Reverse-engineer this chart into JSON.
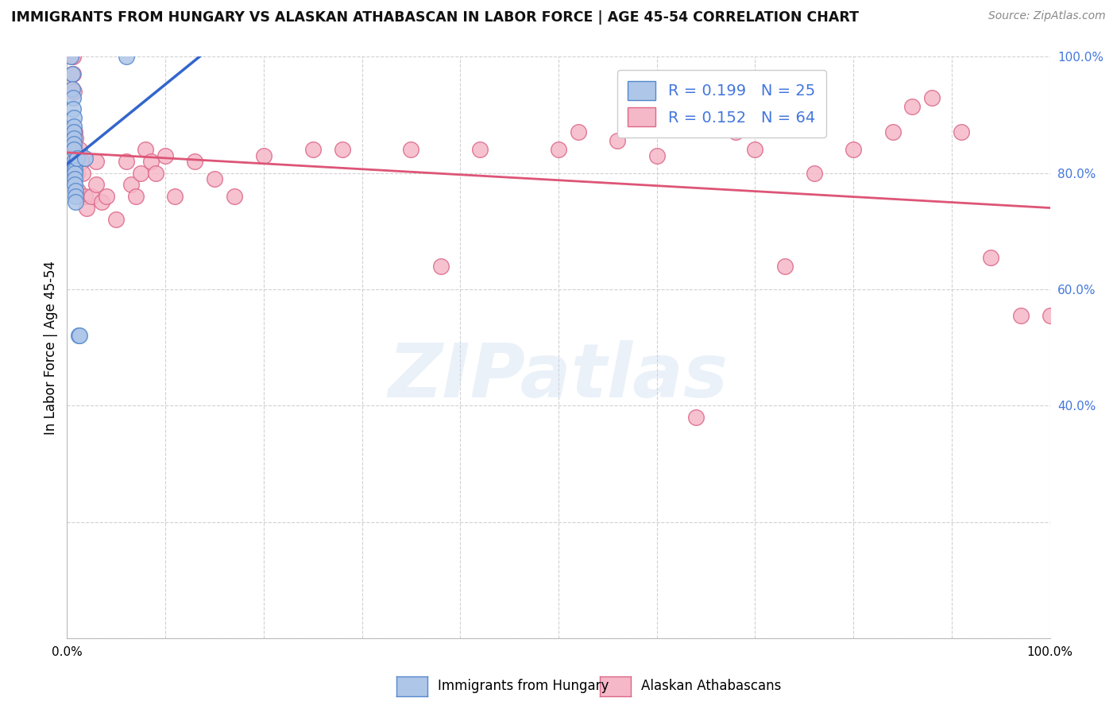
{
  "title": "IMMIGRANTS FROM HUNGARY VS ALASKAN ATHABASCAN IN LABOR FORCE | AGE 45-54 CORRELATION CHART",
  "source": "Source: ZipAtlas.com",
  "ylabel": "In Labor Force | Age 45-54",
  "blue_R": 0.199,
  "blue_N": 25,
  "pink_R": 0.152,
  "pink_N": 64,
  "blue_color": "#aec6e8",
  "pink_color": "#f5b8c8",
  "blue_edge_color": "#5588cc",
  "pink_edge_color": "#dd6688",
  "blue_line_color": "#3366cc",
  "pink_line_color": "#dd5577",
  "right_tick_color": "#4477dd",
  "grid_color": "#cccccc",
  "background_color": "#ffffff",
  "blue_x": [
    0.004,
    0.005,
    0.005,
    0.006,
    0.006,
    0.007,
    0.007,
    0.007,
    0.007,
    0.007,
    0.007,
    0.007,
    0.008,
    0.008,
    0.008,
    0.008,
    0.008,
    0.009,
    0.009,
    0.009,
    0.01,
    0.012,
    0.013,
    0.018,
    0.06
  ],
  "blue_y": [
    1.0,
    0.97,
    0.945,
    0.93,
    0.91,
    0.895,
    0.88,
    0.87,
    0.86,
    0.85,
    0.84,
    0.82,
    0.815,
    0.805,
    0.8,
    0.79,
    0.78,
    0.77,
    0.76,
    0.75,
    0.825,
    0.52,
    0.52,
    0.825,
    1.0
  ],
  "pink_x": [
    0.004,
    0.005,
    0.005,
    0.005,
    0.006,
    0.006,
    0.007,
    0.007,
    0.007,
    0.008,
    0.008,
    0.008,
    0.009,
    0.009,
    0.01,
    0.01,
    0.011,
    0.012,
    0.013,
    0.015,
    0.016,
    0.018,
    0.02,
    0.025,
    0.03,
    0.03,
    0.035,
    0.04,
    0.05,
    0.06,
    0.065,
    0.07,
    0.075,
    0.08,
    0.085,
    0.09,
    0.1,
    0.11,
    0.13,
    0.15,
    0.17,
    0.2,
    0.25,
    0.28,
    0.35,
    0.38,
    0.42,
    0.5,
    0.52,
    0.56,
    0.6,
    0.64,
    0.68,
    0.7,
    0.73,
    0.76,
    0.8,
    0.84,
    0.86,
    0.88,
    0.91,
    0.94,
    0.97,
    1.0
  ],
  "pink_y": [
    0.87,
    1.0,
    0.97,
    0.945,
    1.0,
    0.97,
    0.94,
    0.87,
    0.84,
    0.87,
    0.845,
    0.82,
    0.8,
    0.86,
    0.83,
    0.8,
    0.77,
    0.82,
    0.84,
    0.82,
    0.8,
    0.76,
    0.74,
    0.76,
    0.82,
    0.78,
    0.75,
    0.76,
    0.72,
    0.82,
    0.78,
    0.76,
    0.8,
    0.84,
    0.82,
    0.8,
    0.83,
    0.76,
    0.82,
    0.79,
    0.76,
    0.83,
    0.84,
    0.84,
    0.84,
    0.64,
    0.84,
    0.84,
    0.87,
    0.855,
    0.83,
    0.38,
    0.87,
    0.84,
    0.64,
    0.8,
    0.84,
    0.87,
    0.915,
    0.93,
    0.87,
    0.655,
    0.555,
    0.555
  ],
  "watermark_text": "ZIPatlas",
  "legend_label_blue": "Immigrants from Hungary",
  "legend_label_pink": "Alaskan Athabascans"
}
